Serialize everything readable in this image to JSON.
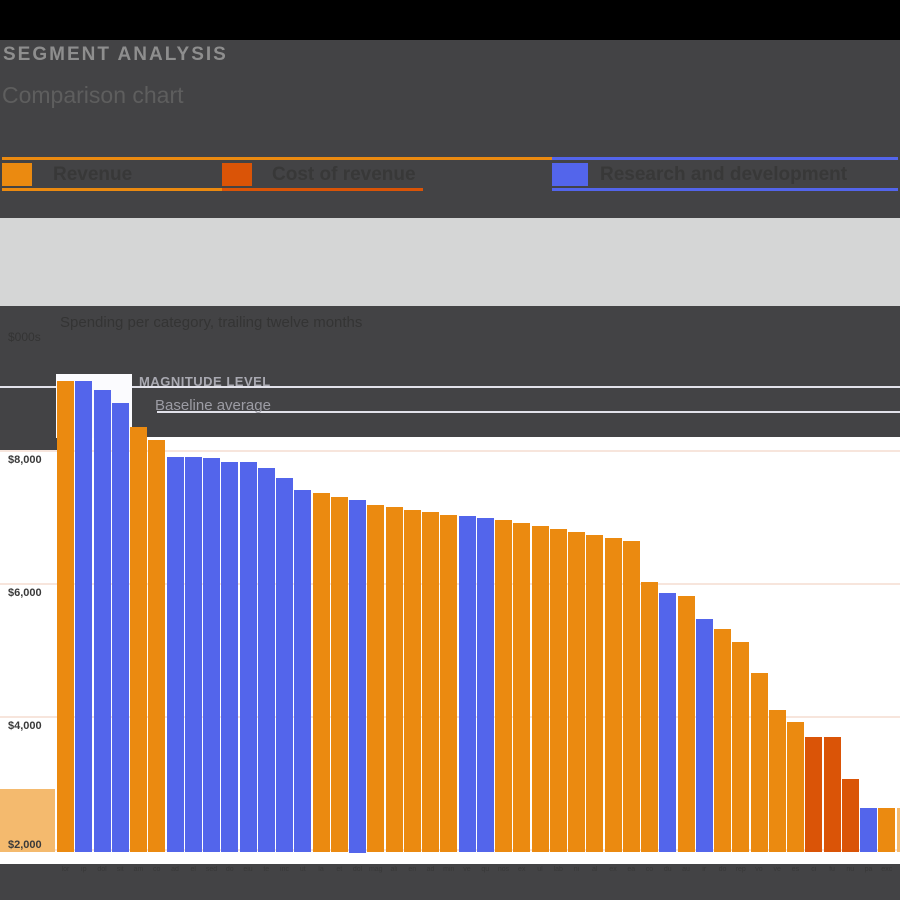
{
  "colors": {
    "orange": "#EB8A10",
    "blue": "#5365EB",
    "darkorange": "#DA5407",
    "peach": "#F4BA6E",
    "panel": "#434345",
    "plot_bg": "#FFFFFF",
    "gridline": "#F7E5DC",
    "annotation_rule": "#E2E2EA",
    "gray_box": "#D5D6D6",
    "black_strip": "#000000"
  },
  "header": {
    "title": "SEGMENT ANALYSIS",
    "subtitle": "Comparison chart"
  },
  "legend": {
    "items": [
      {
        "label": "Revenue",
        "color": "orange"
      },
      {
        "label": "Cost of revenue",
        "color": "darkorange"
      },
      {
        "label": "Research and development",
        "color": "blue"
      }
    ]
  },
  "description": {
    "line1": "Spending per category, trailing twelve months",
    "line2": "$000s"
  },
  "annotations": {
    "line1": "MAGNITUDE LEVEL",
    "line2": "Baseline average"
  },
  "chart_data": {
    "type": "bar",
    "title": "Comparison chart",
    "legend_position": "top",
    "grid": true,
    "ylim": [
      2000,
      9200
    ],
    "y_tick_values": [
      8000,
      6000,
      4000,
      2000
    ],
    "y_tick_labels": [
      "$8,000",
      "$6,000",
      "$4,000",
      "$2,000"
    ],
    "x_labels": [
      "lor",
      "ip",
      "dol",
      "sit",
      "am",
      "co",
      "ad",
      "el",
      "sed",
      "do",
      "eiu",
      "te",
      "inc",
      "ut",
      "la",
      "et",
      "dol",
      "mag",
      "ali",
      "en",
      "ad",
      "min",
      "ve",
      "qu",
      "nos",
      "ex",
      "ul",
      "lab",
      "ni",
      "al",
      "ex",
      "ea",
      "co",
      "du",
      "au",
      "ir",
      "do",
      "rep",
      "vo",
      "ve",
      "es",
      "ci",
      "fu",
      "nu",
      "pa",
      "exc",
      "si"
    ],
    "values": [
      9040,
      9040,
      8900,
      8710,
      8350,
      8150,
      7900,
      7900,
      7880,
      7820,
      7820,
      7730,
      7580,
      7400,
      7350,
      7290,
      7250,
      7170,
      7140,
      7100,
      7070,
      7030,
      7010,
      6980,
      6950,
      6900,
      6860,
      6810,
      6770,
      6720,
      6680,
      6630,
      6020,
      5850,
      5810,
      5460,
      5310,
      5110,
      4650,
      4090,
      3910,
      3680,
      3680,
      3050,
      2620,
      2620,
      2620
    ],
    "bar_colors": [
      "orange",
      "blue",
      "blue",
      "blue",
      "orange",
      "orange",
      "blue",
      "blue",
      "blue",
      "blue",
      "blue",
      "blue",
      "blue",
      "blue",
      "orange",
      "orange",
      "blue",
      "orange",
      "orange",
      "orange",
      "orange",
      "orange",
      "blue",
      "blue",
      "orange",
      "orange",
      "orange",
      "orange",
      "orange",
      "orange",
      "orange",
      "orange",
      "orange",
      "blue",
      "orange",
      "blue",
      "orange",
      "orange",
      "orange",
      "orange",
      "orange",
      "darkorange",
      "darkorange",
      "darkorange",
      "blue",
      "orange",
      "peach"
    ]
  }
}
